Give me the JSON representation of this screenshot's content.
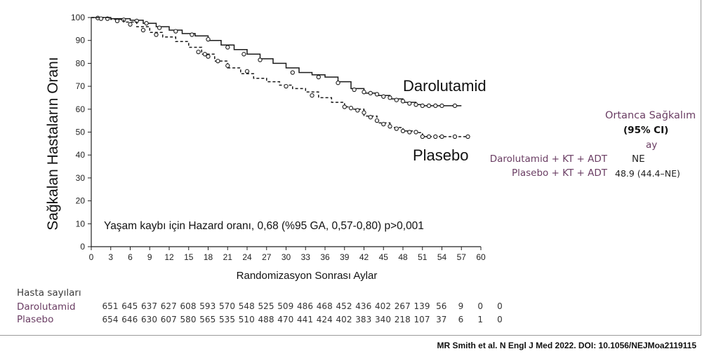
{
  "chart_data": {
    "type": "line",
    "subtype": "kaplan-meier",
    "title": "",
    "xlabel": "Randomizasyon Sonrası Aylar",
    "ylabel": "Sağkalan Hastaların Oranı",
    "xlim": [
      0,
      60
    ],
    "ylim": [
      0,
      100
    ],
    "x_ticks": [
      0,
      3,
      6,
      9,
      12,
      15,
      18,
      21,
      24,
      27,
      30,
      33,
      36,
      39,
      42,
      45,
      48,
      51,
      54,
      57,
      60
    ],
    "y_ticks": [
      0,
      10,
      20,
      30,
      40,
      50,
      60,
      70,
      80,
      90,
      100
    ],
    "grid": false,
    "series": [
      {
        "name": "Darolutamid",
        "line_style": "solid",
        "color": "#1a1a1a",
        "points": [
          [
            0,
            100
          ],
          [
            3,
            99.5
          ],
          [
            6,
            98.8
          ],
          [
            8,
            97.5
          ],
          [
            10,
            96
          ],
          [
            12,
            94.5
          ],
          [
            14,
            93
          ],
          [
            16,
            92
          ],
          [
            18,
            90
          ],
          [
            20,
            88
          ],
          [
            22,
            86
          ],
          [
            24,
            84
          ],
          [
            26,
            82
          ],
          [
            28,
            80
          ],
          [
            30,
            78
          ],
          [
            32,
            76
          ],
          [
            34,
            75
          ],
          [
            36,
            74
          ],
          [
            38,
            72
          ],
          [
            40,
            69
          ],
          [
            42,
            67
          ],
          [
            44,
            66
          ],
          [
            46,
            64.5
          ],
          [
            48,
            63
          ],
          [
            50,
            62
          ],
          [
            51,
            61.5
          ],
          [
            54,
            61.5
          ],
          [
            57,
            61.5
          ]
        ],
        "censor_marks": [
          [
            1,
            99.8
          ],
          [
            2.5,
            99.5
          ],
          [
            5,
            99
          ],
          [
            7,
            98.5
          ],
          [
            8.5,
            97.5
          ],
          [
            10.5,
            95.5
          ],
          [
            13,
            94
          ],
          [
            15.5,
            92.5
          ],
          [
            18,
            90.5
          ],
          [
            21,
            87
          ],
          [
            23.5,
            84
          ],
          [
            26,
            81.5
          ],
          [
            31,
            76
          ],
          [
            35,
            74
          ],
          [
            38,
            71.5
          ],
          [
            40.5,
            68.5
          ],
          [
            42,
            67.5
          ],
          [
            43,
            67
          ],
          [
            44,
            66.5
          ],
          [
            45,
            65.5
          ],
          [
            46,
            65
          ],
          [
            47,
            64
          ],
          [
            48,
            63.5
          ],
          [
            49,
            62.5
          ],
          [
            50,
            62
          ],
          [
            51,
            61.5
          ],
          [
            52,
            61.5
          ],
          [
            53,
            61.5
          ],
          [
            54,
            61.5
          ],
          [
            56,
            61.5
          ]
        ]
      },
      {
        "name": "Plasebo",
        "line_style": "dashed",
        "color": "#1a1a1a",
        "points": [
          [
            0,
            100
          ],
          [
            3,
            99.2
          ],
          [
            5,
            98
          ],
          [
            7,
            96
          ],
          [
            9,
            93.5
          ],
          [
            11,
            91.5
          ],
          [
            13,
            89.5
          ],
          [
            15,
            87
          ],
          [
            17,
            84
          ],
          [
            19,
            81
          ],
          [
            21,
            78
          ],
          [
            23,
            75.5
          ],
          [
            25,
            73.5
          ],
          [
            27,
            72
          ],
          [
            29,
            70.5
          ],
          [
            31,
            69
          ],
          [
            33,
            67.5
          ],
          [
            35,
            65
          ],
          [
            37,
            63
          ],
          [
            39,
            61
          ],
          [
            40,
            60
          ],
          [
            42,
            57
          ],
          [
            44,
            54
          ],
          [
            46,
            52
          ],
          [
            48,
            50.5
          ],
          [
            50,
            49.8
          ],
          [
            51,
            48
          ],
          [
            54,
            48
          ],
          [
            58,
            48
          ]
        ],
        "censor_marks": [
          [
            1.5,
            99.5
          ],
          [
            4,
            98.5
          ],
          [
            6,
            97
          ],
          [
            8,
            94.5
          ],
          [
            10,
            92.5
          ],
          [
            16.5,
            85
          ],
          [
            17.5,
            84
          ],
          [
            18,
            83
          ],
          [
            19.5,
            81
          ],
          [
            21,
            79
          ],
          [
            24,
            76.5
          ],
          [
            30,
            70
          ],
          [
            34,
            66
          ],
          [
            39,
            61
          ],
          [
            40,
            60.5
          ],
          [
            41,
            59.5
          ],
          [
            42,
            58.5
          ],
          [
            43,
            56.5
          ],
          [
            44,
            55
          ],
          [
            45,
            53.5
          ],
          [
            46,
            52.5
          ],
          [
            47,
            51.5
          ],
          [
            48,
            50.5
          ],
          [
            49,
            50
          ],
          [
            50,
            50
          ],
          [
            51,
            48
          ],
          [
            52,
            48
          ],
          [
            53,
            48
          ],
          [
            54,
            48
          ],
          [
            56,
            48
          ],
          [
            58,
            48
          ]
        ]
      }
    ],
    "annotation": "Yaşam kaybı için Hazard oranı, 0,68 (%95 GA, 0,57-0,80) p>0,001",
    "legend": {
      "title": "Ortanca Sağkalım",
      "ci_label": "(95% CI)",
      "unit": "ay",
      "rows": [
        {
          "label": "Darolutamid + KT + ADT",
          "value": "NE"
        },
        {
          "label": "Plasebo + KT + ADT",
          "value": "48.9 (44.4–NE)"
        }
      ]
    },
    "risk_table": {
      "header": "Hasta sayıları",
      "times": [
        0,
        3,
        6,
        9,
        12,
        15,
        18,
        21,
        24,
        27,
        30,
        33,
        36,
        39,
        42,
        45,
        48,
        51,
        54,
        57,
        60
      ],
      "rows": [
        {
          "name": "Darolutamid",
          "values": [
            "651",
            "645",
            "637",
            "627",
            "608",
            "593",
            "570",
            "548",
            "525",
            "509",
            "486",
            "468",
            "452",
            "436",
            "402",
            "267",
            "139",
            "56",
            "9",
            "0",
            "0"
          ]
        },
        {
          "name": "Plasebo",
          "values": [
            "654",
            "646",
            "630",
            "607",
            "580",
            "565",
            "535",
            "510",
            "488",
            "470",
            "441",
            "424",
            "402",
            "383",
            "340",
            "218",
            "107",
            "37",
            "6",
            "1",
            "0"
          ]
        }
      ]
    }
  },
  "citation": "MR Smith et al. N Engl J Med 2022. DOI: 10.1056/NEJMoa2119115"
}
